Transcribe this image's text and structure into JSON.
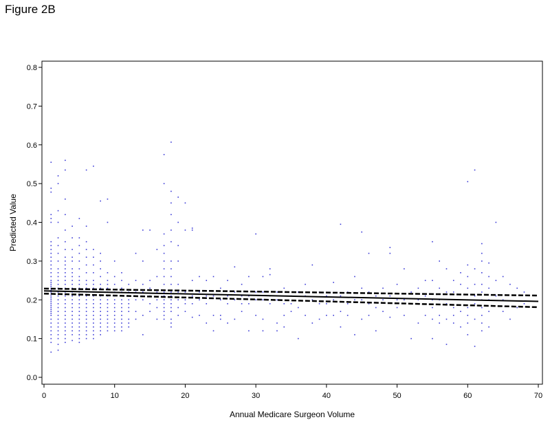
{
  "figure_title": "Figure 2B",
  "chart_data": {
    "type": "scatter",
    "title": "",
    "xlabel": "Annual Medicare Surgeon Volume",
    "ylabel": "Predicted Value",
    "xlim": [
      0,
      70
    ],
    "ylim": [
      0.0,
      0.8
    ],
    "xticks": [
      0,
      10,
      20,
      30,
      40,
      50,
      60,
      70
    ],
    "yticks": [
      0.0,
      0.1,
      0.2,
      0.3,
      0.4,
      0.5,
      0.6,
      0.7,
      0.8
    ],
    "grid": false,
    "colors": {
      "points": "#3a3ad6",
      "lines": "#000000"
    },
    "scatter_columns": [
      {
        "x": 1,
        "values": [
          0.555,
          0.488,
          0.478,
          0.42,
          0.41,
          0.4,
          0.35,
          0.34,
          0.33,
          0.32,
          0.31,
          0.3,
          0.29,
          0.28,
          0.27,
          0.26,
          0.25,
          0.245,
          0.24,
          0.235,
          0.23,
          0.225,
          0.22,
          0.215,
          0.21,
          0.205,
          0.2,
          0.195,
          0.19,
          0.185,
          0.18,
          0.175,
          0.17,
          0.165,
          0.16,
          0.15,
          0.14,
          0.13,
          0.12,
          0.11,
          0.1,
          0.09,
          0.065
        ]
      },
      {
        "x": 2,
        "values": [
          0.52,
          0.5,
          0.43,
          0.4,
          0.36,
          0.34,
          0.32,
          0.3,
          0.28,
          0.27,
          0.26,
          0.25,
          0.24,
          0.23,
          0.22,
          0.21,
          0.2,
          0.19,
          0.18,
          0.17,
          0.16,
          0.15,
          0.14,
          0.13,
          0.12,
          0.11,
          0.1,
          0.085,
          0.07
        ]
      },
      {
        "x": 3,
        "values": [
          0.56,
          0.535,
          0.46,
          0.42,
          0.38,
          0.35,
          0.33,
          0.31,
          0.3,
          0.29,
          0.28,
          0.27,
          0.26,
          0.25,
          0.24,
          0.23,
          0.22,
          0.21,
          0.2,
          0.19,
          0.18,
          0.17,
          0.16,
          0.15,
          0.14,
          0.13,
          0.12,
          0.11,
          0.1,
          0.09
        ]
      },
      {
        "x": 4,
        "values": [
          0.39,
          0.36,
          0.33,
          0.31,
          0.3,
          0.28,
          0.27,
          0.26,
          0.25,
          0.24,
          0.23,
          0.22,
          0.21,
          0.2,
          0.19,
          0.18,
          0.17,
          0.16,
          0.15,
          0.14,
          0.13,
          0.12,
          0.11,
          0.095
        ]
      },
      {
        "x": 5,
        "values": [
          0.41,
          0.36,
          0.34,
          0.32,
          0.3,
          0.28,
          0.26,
          0.25,
          0.24,
          0.23,
          0.22,
          0.21,
          0.2,
          0.19,
          0.18,
          0.17,
          0.16,
          0.15,
          0.14,
          0.13,
          0.12,
          0.11,
          0.1,
          0.09
        ]
      },
      {
        "x": 6,
        "values": [
          0.535,
          0.39,
          0.35,
          0.33,
          0.31,
          0.29,
          0.27,
          0.25,
          0.24,
          0.23,
          0.22,
          0.21,
          0.2,
          0.19,
          0.18,
          0.17,
          0.16,
          0.15,
          0.14,
          0.13,
          0.12,
          0.11,
          0.1
        ]
      },
      {
        "x": 7,
        "values": [
          0.545,
          0.33,
          0.31,
          0.29,
          0.27,
          0.25,
          0.24,
          0.23,
          0.22,
          0.21,
          0.2,
          0.19,
          0.18,
          0.17,
          0.16,
          0.15,
          0.14,
          0.13,
          0.12,
          0.11,
          0.1
        ]
      },
      {
        "x": 8,
        "values": [
          0.455,
          0.32,
          0.3,
          0.28,
          0.26,
          0.24,
          0.23,
          0.22,
          0.21,
          0.2,
          0.19,
          0.18,
          0.17,
          0.16,
          0.15,
          0.14,
          0.13,
          0.12,
          0.11
        ]
      },
      {
        "x": 9,
        "values": [
          0.46,
          0.4,
          0.27,
          0.25,
          0.24,
          0.23,
          0.22,
          0.21,
          0.2,
          0.19,
          0.18,
          0.17,
          0.16,
          0.15,
          0.14,
          0.13,
          0.12
        ]
      },
      {
        "x": 10,
        "values": [
          0.3,
          0.26,
          0.24,
          0.22,
          0.21,
          0.2,
          0.19,
          0.18,
          0.17,
          0.16,
          0.15,
          0.14,
          0.13,
          0.12
        ]
      },
      {
        "x": 11,
        "values": [
          0.27,
          0.25,
          0.23,
          0.22,
          0.2,
          0.19,
          0.18,
          0.17,
          0.16,
          0.15,
          0.14,
          0.13,
          0.12
        ]
      },
      {
        "x": 12,
        "values": [
          0.24,
          0.22,
          0.2,
          0.19,
          0.18,
          0.17,
          0.15,
          0.14,
          0.13
        ]
      },
      {
        "x": 13,
        "values": [
          0.32,
          0.25,
          0.22,
          0.2,
          0.17,
          0.15
        ]
      },
      {
        "x": 14,
        "values": [
          0.38,
          0.3,
          0.24,
          0.22,
          0.2,
          0.16,
          0.11
        ]
      },
      {
        "x": 15,
        "values": [
          0.38,
          0.25,
          0.23,
          0.21,
          0.19,
          0.17
        ]
      },
      {
        "x": 16,
        "values": [
          0.33,
          0.26,
          0.22,
          0.2,
          0.18,
          0.15
        ]
      },
      {
        "x": 17,
        "values": [
          0.575,
          0.5,
          0.37,
          0.34,
          0.32,
          0.3,
          0.28,
          0.26,
          0.24,
          0.22,
          0.21,
          0.2,
          0.19,
          0.18,
          0.17,
          0.16,
          0.15
        ]
      },
      {
        "x": 18,
        "values": [
          0.607,
          0.48,
          0.45,
          0.42,
          0.38,
          0.35,
          0.3,
          0.28,
          0.26,
          0.24,
          0.22,
          0.21,
          0.2,
          0.19,
          0.18,
          0.17,
          0.15,
          0.14,
          0.13
        ]
      },
      {
        "x": 19,
        "values": [
          0.465,
          0.4,
          0.34,
          0.3,
          0.24,
          0.22,
          0.2,
          0.18,
          0.16
        ]
      },
      {
        "x": 20,
        "values": [
          0.45,
          0.38,
          0.22,
          0.2,
          0.19,
          0.17
        ]
      },
      {
        "x": 21,
        "values": [
          0.385,
          0.38,
          0.25,
          0.21,
          0.19,
          0.155
        ]
      },
      {
        "x": 22,
        "values": [
          0.26,
          0.22,
          0.2,
          0.16
        ]
      },
      {
        "x": 23,
        "values": [
          0.25,
          0.21,
          0.19,
          0.14
        ]
      },
      {
        "x": 24,
        "values": [
          0.26,
          0.21,
          0.16,
          0.12
        ]
      },
      {
        "x": 25,
        "values": [
          0.23,
          0.2,
          0.16,
          0.15
        ]
      },
      {
        "x": 26,
        "values": [
          0.25,
          0.21,
          0.19,
          0.14
        ]
      },
      {
        "x": 27,
        "values": [
          0.285,
          0.22,
          0.2,
          0.15
        ]
      },
      {
        "x": 28,
        "values": [
          0.24,
          0.21,
          0.19,
          0.17
        ]
      },
      {
        "x": 29,
        "values": [
          0.26,
          0.21,
          0.19,
          0.12
        ]
      },
      {
        "x": 30,
        "values": [
          0.37,
          0.22,
          0.2,
          0.16
        ]
      },
      {
        "x": 31,
        "values": [
          0.26,
          0.22,
          0.2,
          0.15,
          0.12
        ]
      },
      {
        "x": 32,
        "values": [
          0.28,
          0.265,
          0.21,
          0.19
        ]
      },
      {
        "x": 33,
        "values": [
          0.22,
          0.2,
          0.14,
          0.12
        ]
      },
      {
        "x": 34,
        "values": [
          0.23,
          0.19,
          0.16,
          0.13
        ]
      },
      {
        "x": 35,
        "values": [
          0.21,
          0.19,
          0.17
        ]
      },
      {
        "x": 36,
        "values": [
          0.22,
          0.18,
          0.1
        ]
      },
      {
        "x": 37,
        "values": [
          0.24,
          0.21,
          0.16
        ]
      },
      {
        "x": 38,
        "values": [
          0.29,
          0.2,
          0.14
        ]
      },
      {
        "x": 39,
        "values": [
          0.22,
          0.19,
          0.15
        ]
      },
      {
        "x": 40,
        "values": [
          0.21,
          0.19,
          0.16
        ]
      },
      {
        "x": 41,
        "values": [
          0.245,
          0.2,
          0.16
        ]
      },
      {
        "x": 42,
        "values": [
          0.395,
          0.21,
          0.17,
          0.13
        ]
      },
      {
        "x": 43,
        "values": [
          0.22,
          0.19,
          0.16
        ]
      },
      {
        "x": 44,
        "values": [
          0.26,
          0.2,
          0.11
        ]
      },
      {
        "x": 45,
        "values": [
          0.375,
          0.23,
          0.2,
          0.15
        ]
      },
      {
        "x": 46,
        "values": [
          0.32,
          0.22,
          0.19,
          0.16
        ]
      },
      {
        "x": 47,
        "values": [
          0.21,
          0.18,
          0.12
        ]
      },
      {
        "x": 48,
        "values": [
          0.23,
          0.2,
          0.17
        ]
      },
      {
        "x": 49,
        "values": [
          0.335,
          0.32,
          0.21,
          0.155
        ]
      },
      {
        "x": 50,
        "values": [
          0.24,
          0.2,
          0.18
        ]
      },
      {
        "x": 51,
        "values": [
          0.28,
          0.2,
          0.16
        ]
      },
      {
        "x": 52,
        "values": [
          0.22,
          0.19,
          0.1
        ]
      },
      {
        "x": 53,
        "values": [
          0.23,
          0.2,
          0.14
        ]
      },
      {
        "x": 54,
        "values": [
          0.25,
          0.21,
          0.16
        ]
      },
      {
        "x": 55,
        "values": [
          0.35,
          0.25,
          0.2,
          0.18,
          0.15,
          0.1
        ]
      },
      {
        "x": 56,
        "values": [
          0.3,
          0.23,
          0.2,
          0.16,
          0.14
        ]
      },
      {
        "x": 57,
        "values": [
          0.28,
          0.22,
          0.19,
          0.15,
          0.085
        ]
      },
      {
        "x": 58,
        "values": [
          0.25,
          0.22,
          0.18,
          0.16,
          0.14
        ]
      },
      {
        "x": 59,
        "values": [
          0.27,
          0.24,
          0.2,
          0.17,
          0.13
        ]
      },
      {
        "x": 60,
        "values": [
          0.505,
          0.29,
          0.26,
          0.23,
          0.2,
          0.18,
          0.16,
          0.14,
          0.11
        ]
      },
      {
        "x": 61,
        "values": [
          0.535,
          0.28,
          0.24,
          0.21,
          0.19,
          0.15,
          0.08
        ]
      },
      {
        "x": 62,
        "values": [
          0.345,
          0.32,
          0.3,
          0.27,
          0.24,
          0.22,
          0.2,
          0.18,
          0.16,
          0.14,
          0.12
        ]
      },
      {
        "x": 63,
        "values": [
          0.295,
          0.26,
          0.23,
          0.2,
          0.17,
          0.13
        ]
      },
      {
        "x": 64,
        "values": [
          0.4,
          0.25,
          0.21
        ]
      },
      {
        "x": 65,
        "values": [
          0.26,
          0.2,
          0.17
        ]
      },
      {
        "x": 66,
        "values": [
          0.24,
          0.15
        ]
      },
      {
        "x": 67,
        "values": [
          0.23,
          0.18
        ]
      },
      {
        "x": 68,
        "values": [
          0.22,
          0.19
        ]
      }
    ],
    "series": [
      {
        "name": "",
        "style": "solid",
        "x": [
          0,
          70
        ],
        "y": [
          0.223,
          0.196
        ]
      },
      {
        "name": "",
        "style": "dashed",
        "x": [
          0,
          70
        ],
        "y": [
          0.229,
          0.211
        ]
      },
      {
        "name": "",
        "style": "dashed",
        "x": [
          0,
          70
        ],
        "y": [
          0.216,
          0.181
        ]
      }
    ]
  }
}
